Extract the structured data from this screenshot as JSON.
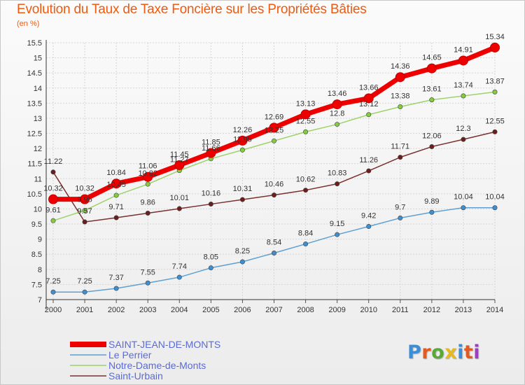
{
  "chart_data": {
    "type": "line",
    "title": "Evolution du Taux de Taxe Foncière sur les Propriétés Bâties",
    "subtitle": "(en %)",
    "xlabel": "",
    "ylabel": "",
    "categories": [
      "2000",
      "2001",
      "2002",
      "2003",
      "2004",
      "2005",
      "2006",
      "2007",
      "2008",
      "2009",
      "2010",
      "2011",
      "2012",
      "2013",
      "2014"
    ],
    "ylim": [
      7,
      15.5
    ],
    "yticks": [
      "7",
      "7.5",
      "8",
      "8.5",
      "9",
      "9.5",
      "10",
      "10.5",
      "11",
      "11.5",
      "12",
      "12.5",
      "13",
      "13.5",
      "14",
      "14.5",
      "15",
      "15.5"
    ],
    "grid": true,
    "legend_position": "bottom-left",
    "series": [
      {
        "name": "SAINT-JEAN-DE-MONTS",
        "color": "#ee0000",
        "marker_color": "#ee0000",
        "values": [
          10.32,
          10.32,
          10.84,
          11.06,
          11.45,
          11.85,
          12.26,
          12.69,
          13.13,
          13.46,
          13.66,
          14.36,
          14.65,
          14.91,
          15.34
        ],
        "labels": [
          "10.32",
          "10.32",
          "10.84",
          "11.06",
          "11.45",
          "11.85",
          "12.26",
          "12.69",
          "13.13",
          "13.46",
          "13.66",
          "14.36",
          "14.65",
          "14.91",
          "15.34"
        ]
      },
      {
        "name": "Le Perrier",
        "color": "#5fa0d0",
        "marker_color": "#3f8fd0",
        "values": [
          7.25,
          7.25,
          7.37,
          7.55,
          7.74,
          8.05,
          8.25,
          8.54,
          8.84,
          9.15,
          9.42,
          9.7,
          9.89,
          10.04,
          10.04
        ],
        "labels": [
          "7.25",
          "7.25",
          "7.37",
          "7.55",
          "7.74",
          "8.05",
          "8.25",
          "8.54",
          "8.84",
          "9.15",
          "9.42",
          "9.7",
          "9.89",
          "10.04",
          "10.04"
        ]
      },
      {
        "name": "Notre-Dame-de-Monts",
        "color": "#9ed26a",
        "marker_color": "#84cc3c",
        "values": [
          9.61,
          9.95,
          10.45,
          10.82,
          11.27,
          11.66,
          11.95,
          12.25,
          12.55,
          12.8,
          13.12,
          13.38,
          13.61,
          13.74,
          13.87
        ],
        "labels": [
          "9.61",
          "9.95",
          "10.45",
          "10.82",
          "11.27",
          "11.66",
          "11.95",
          "12.25",
          "12.55",
          "12.8",
          "13.12",
          "13.38",
          "13.61",
          "13.74",
          "13.87"
        ]
      },
      {
        "name": "Saint-Urbain",
        "color": "#7a3030",
        "marker_color": "#6a1e1e",
        "values": [
          11.22,
          9.57,
          9.71,
          9.86,
          10.01,
          10.16,
          10.31,
          10.46,
          10.62,
          10.83,
          11.26,
          11.71,
          12.06,
          12.3,
          12.55
        ],
        "labels": [
          "11.22",
          "9.57",
          "9.71",
          "9.86",
          "10.01",
          "10.16",
          "10.31",
          "10.46",
          "10.62",
          "10.83",
          "11.26",
          "11.71",
          "12.06",
          "12.3",
          "12.55"
        ]
      }
    ]
  },
  "legend": [
    {
      "label": "SAINT-JEAN-DE-MONTS",
      "text_color": "#5a6ad6"
    },
    {
      "label": "Le Perrier",
      "text_color": "#5a6ad6"
    },
    {
      "label": "Notre-Dame-de-Monts",
      "text_color": "#5a6ad6"
    },
    {
      "label": "Saint-Urbain",
      "text_color": "#5a6ad6"
    }
  ],
  "logo": {
    "text": "Proxiti",
    "colors": [
      "#3a8fd8",
      "#e35a1f",
      "#5aa83a",
      "#e8b820",
      "#3a8fd8",
      "#e35a1f",
      "#9b3fc0"
    ]
  }
}
